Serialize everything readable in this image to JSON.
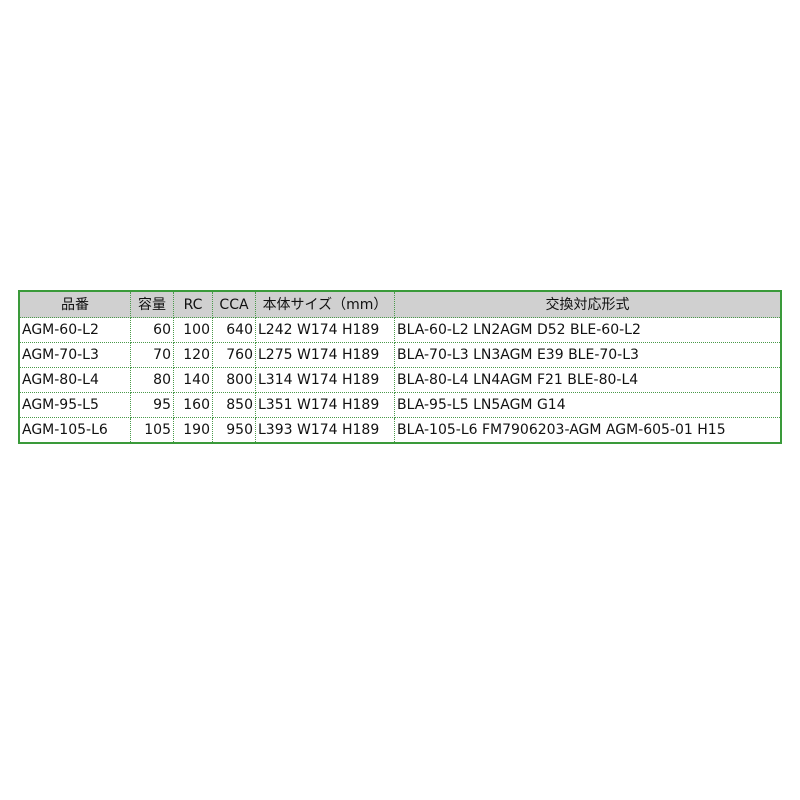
{
  "table": {
    "headers": [
      "品番",
      "容量",
      "RC",
      "CCA",
      "本体サイズ（mm）",
      "交換対応形式"
    ],
    "rows": [
      [
        "AGM-60-L2",
        "60",
        "100",
        "640",
        "L242 W174 H189",
        "BLA-60-L2 LN2AGM D52 BLE-60-L2"
      ],
      [
        "AGM-70-L3",
        "70",
        "120",
        "760",
        "L275 W174 H189",
        "BLA-70-L3 LN3AGM E39 BLE-70-L3"
      ],
      [
        "AGM-80-L4",
        "80",
        "140",
        "800",
        "L314 W174 H189",
        "BLA-80-L4 LN4AGM F21 BLE-80-L4"
      ],
      [
        "AGM-95-L5",
        "95",
        "160",
        "850",
        "L351 W174 H189",
        "BLA-95-L5 LN5AGM G14"
      ],
      [
        "AGM-105-L6",
        "105",
        "190",
        "950",
        "L393 W174 H189",
        "BLA-105-L6 FM7906203-AGM AGM-605-01 H15"
      ]
    ],
    "colors": {
      "border": "#3a9a3a",
      "header_bg": "#d0d0d0"
    }
  }
}
